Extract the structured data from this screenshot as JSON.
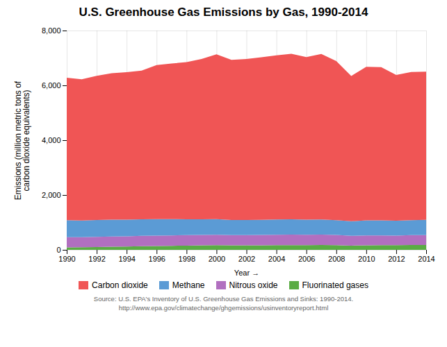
{
  "chart_data": {
    "type": "area",
    "stacked": true,
    "title": "U.S. Greenhouse Gas Emissions by Gas, 1990-2014",
    "xlabel": "Year",
    "ylabel": "Emissions (million metric tons of\ncarbon dioxide equivalents)",
    "annotations": [
      "Source: U.S. EPA's Inventory of U.S. Greenhouse Gas Emissions and Sinks: 1990-2014.",
      "http://www.epa.gov/climatechange/ghgemissions/usinventoryreport.html"
    ],
    "x": [
      1990,
      1991,
      1992,
      1993,
      1994,
      1995,
      1996,
      1997,
      1998,
      1999,
      2000,
      2001,
      2002,
      2003,
      2004,
      2005,
      2006,
      2007,
      2008,
      2009,
      2010,
      2011,
      2012,
      2013,
      2014
    ],
    "series": [
      {
        "name": "Fluorinated gases",
        "color": "#5aac44",
        "values": [
          91,
          96,
          104,
          112,
          121,
          131,
          138,
          147,
          155,
          163,
          168,
          164,
          165,
          167,
          170,
          173,
          171,
          175,
          170,
          154,
          165,
          170,
          172,
          175,
          178
        ]
      },
      {
        "name": "Nitrous oxide",
        "color": "#b16fc0",
        "values": [
          370,
          365,
          370,
          375,
          375,
          380,
          380,
          378,
          382,
          380,
          385,
          374,
          374,
          379,
          382,
          384,
          380,
          380,
          374,
          356,
          362,
          356,
          350,
          360,
          362
        ]
      },
      {
        "name": "Methane",
        "color": "#5b9bd5",
        "values": [
          620,
          610,
          615,
          615,
          605,
          605,
          605,
          595,
          578,
          568,
          568,
          550,
          550,
          550,
          555,
          555,
          550,
          550,
          540,
          532,
          550,
          550,
          540,
          550,
          558
        ]
      },
      {
        "name": "Carbon dioxide",
        "color": "#f05555",
        "values": [
          5200,
          5150,
          5260,
          5340,
          5380,
          5420,
          5620,
          5680,
          5730,
          5850,
          6010,
          5840,
          5870,
          5930,
          5990,
          6040,
          5930,
          6040,
          5800,
          5300,
          5600,
          5590,
          5320,
          5400,
          5400
        ]
      }
    ],
    "xlim": [
      1990,
      2014
    ],
    "xticks": [
      1990,
      1992,
      1994,
      1996,
      1998,
      2000,
      2002,
      2004,
      2006,
      2008,
      2010,
      2012,
      2014
    ],
    "ylim": [
      0,
      8000
    ],
    "yticks": [
      0,
      {
        "value": 2000,
        "label": "2,000"
      },
      {
        "value": 4000,
        "label": "4,000"
      },
      {
        "value": 6000,
        "label": "6,000"
      },
      {
        "value": 8000,
        "label": "8,000"
      }
    ],
    "grid": true,
    "legend": "bottom"
  }
}
